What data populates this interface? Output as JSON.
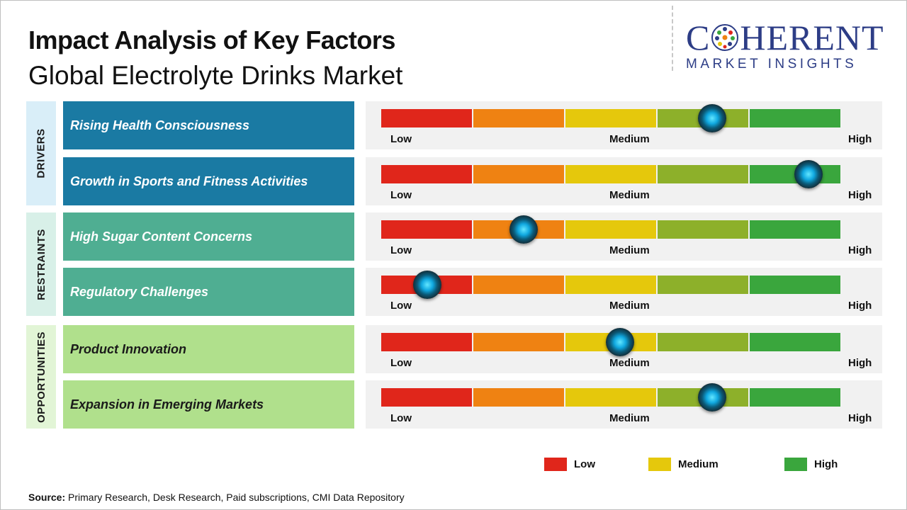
{
  "header": {
    "title": "Impact Analysis of Key Factors",
    "subtitle": "Global Electrolyte Drinks Market"
  },
  "logo": {
    "brand_top": "COHERENT",
    "brand_bottom": "MARKET INSIGHTS"
  },
  "colors": {
    "segments": [
      "#e0261b",
      "#ef8212",
      "#e5c80c",
      "#8db02a",
      "#3aa63d"
    ],
    "drivers": "#1a7aa3",
    "restraints": "#4fae92",
    "opportunities": "#b0e08c",
    "group_drivers_bg": "#d9eef8",
    "group_restraints_bg": "#d8f0e8",
    "group_opportunities_bg": "#e2f5d6"
  },
  "chart_data": {
    "type": "gauge",
    "scale_labels": {
      "low": "Low",
      "medium": "Medium",
      "high": "High"
    },
    "groups": [
      {
        "name": "DRIVERS",
        "factors": [
          {
            "name": "Rising Health Consciousness",
            "impact": 0.72
          },
          {
            "name": "Growth in Sports and Fitness Activities",
            "impact": 0.93
          }
        ]
      },
      {
        "name": "RESTRAINTS",
        "factors": [
          {
            "name": "High Sugar Content Concerns",
            "impact": 0.31
          },
          {
            "name": "Regulatory Challenges",
            "impact": 0.1
          }
        ]
      },
      {
        "name": "OPPORTUNITIES",
        "factors": [
          {
            "name": "Product Innovation",
            "impact": 0.52
          },
          {
            "name": "Expansion in Emerging Markets",
            "impact": 0.72
          }
        ]
      }
    ],
    "legend": [
      {
        "label": "Low",
        "color": "#e0261b"
      },
      {
        "label": "Medium",
        "color": "#e5c80c"
      },
      {
        "label": "High",
        "color": "#3aa63d"
      }
    ]
  },
  "footer": {
    "source_label": "Source:",
    "source_text": " Primary Research, Desk Research, Paid subscriptions, CMI Data Repository"
  }
}
